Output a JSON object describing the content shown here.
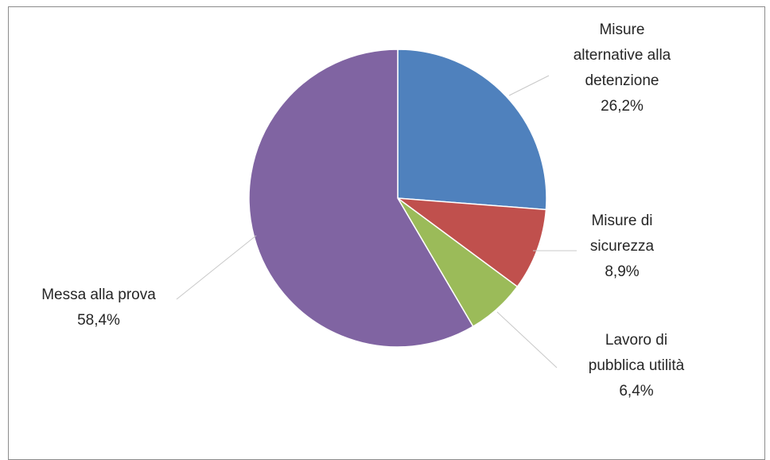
{
  "chart_data": {
    "type": "pie",
    "title": "",
    "slices": [
      {
        "label_lines": [
          "Misure",
          "alternative alla",
          "detenzione"
        ],
        "value": 26.2,
        "value_label": "26,2%",
        "color": "#4f81bd"
      },
      {
        "label_lines": [
          "Misure di",
          "sicurezza"
        ],
        "value": 8.9,
        "value_label": "8,9%",
        "color": "#c0504d"
      },
      {
        "label_lines": [
          "Lavoro di",
          "pubblica utilità"
        ],
        "value": 6.4,
        "value_label": "6,4%",
        "color": "#9bbb59"
      },
      {
        "label_lines": [
          "Messa alla prova"
        ],
        "value": 58.4,
        "value_label": "58,4%",
        "color": "#8064a2"
      }
    ]
  }
}
